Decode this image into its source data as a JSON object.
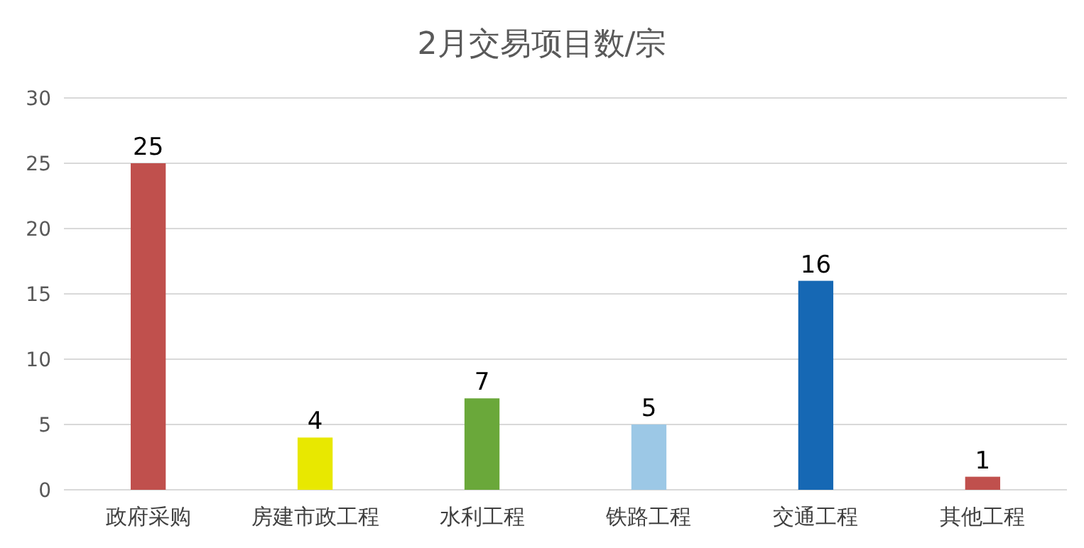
{
  "chart_data": {
    "type": "bar",
    "title": "2月交易项目数/宗",
    "categories": [
      "政府采购",
      "房建市政工程",
      "水利工程",
      "铁路工程",
      "交通工程",
      "其他工程"
    ],
    "values": [
      25,
      4,
      7,
      5,
      16,
      1
    ],
    "colors": [
      "#c0504d",
      "#e8e800",
      "#6aa83a",
      "#9cc8e6",
      "#1668b4",
      "#c0504d"
    ],
    "ylim": [
      0,
      30
    ],
    "yticks": [
      0,
      5,
      10,
      15,
      20,
      25,
      30
    ],
    "grid": "y",
    "data_labels": true
  }
}
